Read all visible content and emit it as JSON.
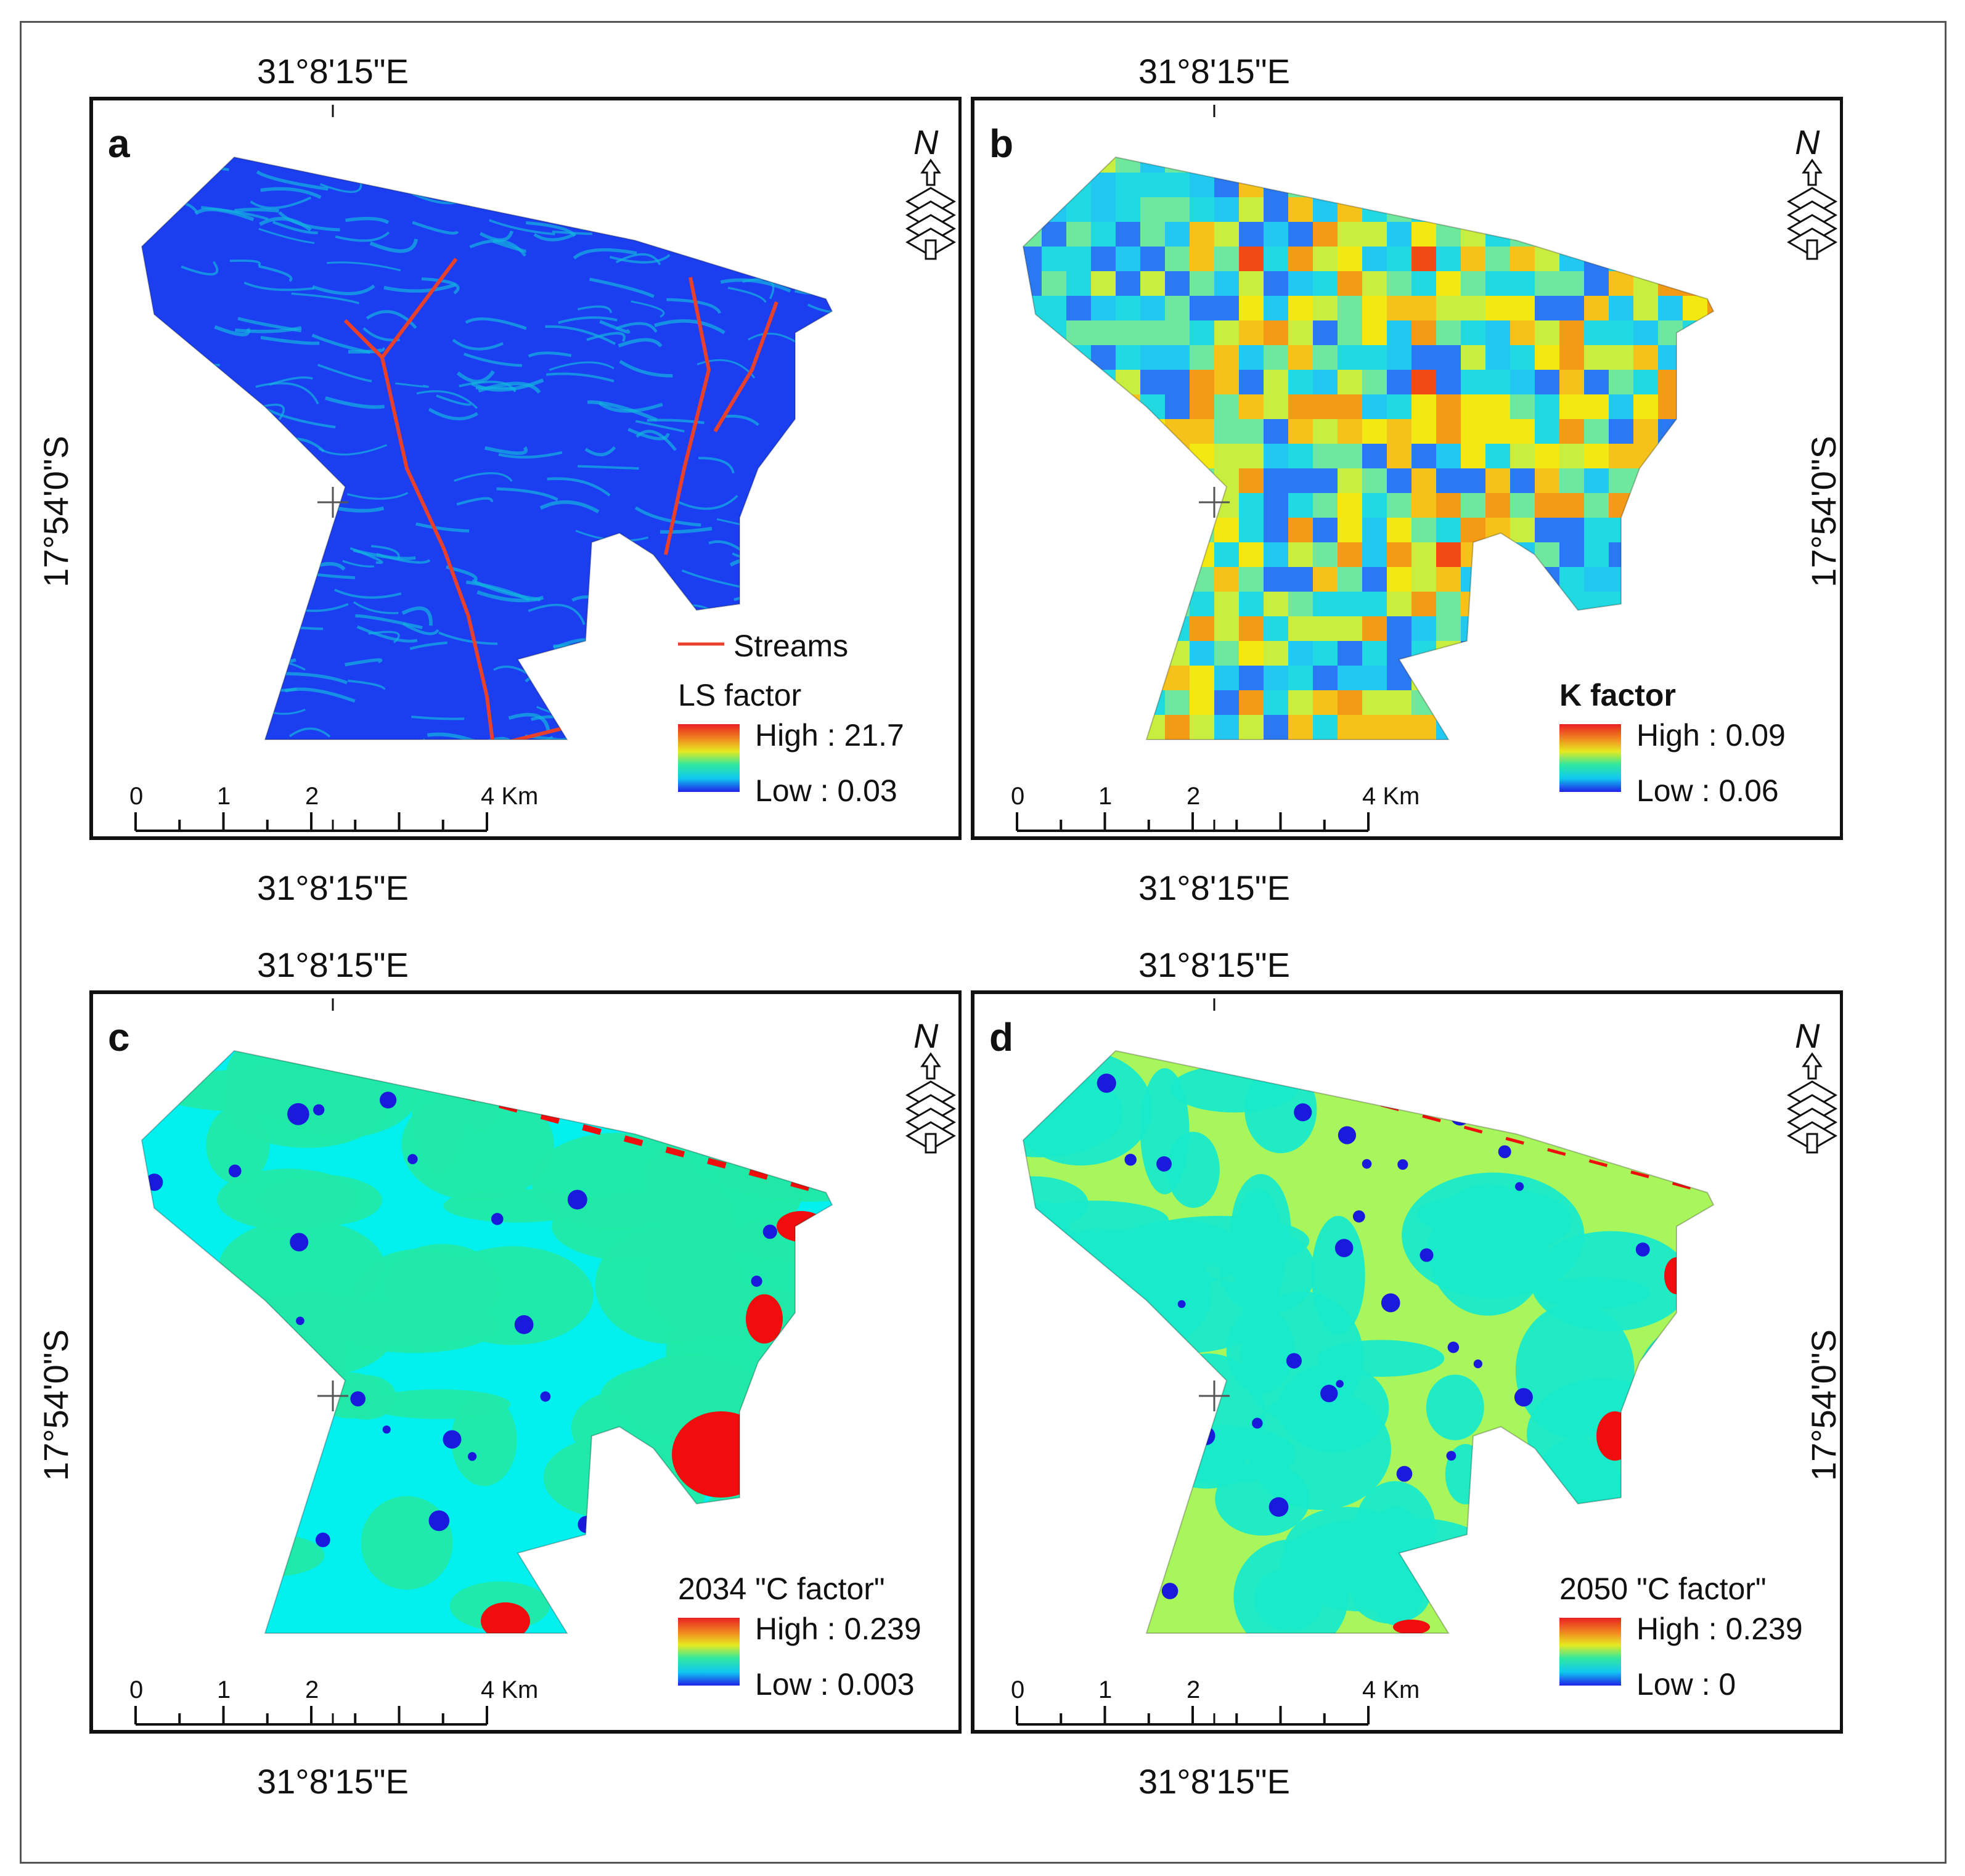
{
  "figure": {
    "coord_labels": {
      "longitude": "31°8'15\"E",
      "latitude": "17°54'0\"S"
    },
    "scale_bar": {
      "ticks": [
        "0",
        "1",
        "2",
        "4 Km"
      ]
    },
    "north_arrow": {
      "letter": "N"
    },
    "panels": [
      {
        "id": "a",
        "letter": "a",
        "raster": "ls-factor",
        "legend_title": "LS factor",
        "legend_title_bold": false,
        "legend_high": "High : 21.7",
        "legend_low": "Low : 0.03",
        "streams_label": "Streams",
        "colors": {
          "base": "#1b3ff0",
          "accent": "#13b3e0",
          "highlight": "#e8402a"
        }
      },
      {
        "id": "b",
        "letter": "b",
        "raster": "k-factor",
        "legend_title": "K factor",
        "legend_title_bold": true,
        "legend_high": "High : 0.09",
        "legend_low": "Low : 0.06",
        "colors": {
          "base": "#f2e812",
          "accent": "#22d9e2",
          "highlight": "#f14a12"
        }
      },
      {
        "id": "c",
        "letter": "c",
        "raster": "c-factor-2034",
        "legend_title": "2034 \"C factor\"",
        "legend_title_bold": false,
        "legend_high": "High : 0.239",
        "legend_low": "Low : 0.003",
        "colors": {
          "base": "#02f0ee",
          "accent": "#21e9a6",
          "highlight": "#f00d0d"
        }
      },
      {
        "id": "d",
        "letter": "d",
        "raster": "c-factor-2050",
        "legend_title": "2050 \"C factor\"",
        "legend_title_bold": false,
        "legend_high": "High : 0.239",
        "legend_low": "Low : 0",
        "colors": {
          "base": "#a8f55c",
          "accent": "#18eaca",
          "highlight": "#f00d0d"
        }
      }
    ],
    "legend_gradient": [
      "#2020e8",
      "#10c8f0",
      "#30e8a0",
      "#e8e820",
      "#f08020",
      "#e82020"
    ]
  }
}
